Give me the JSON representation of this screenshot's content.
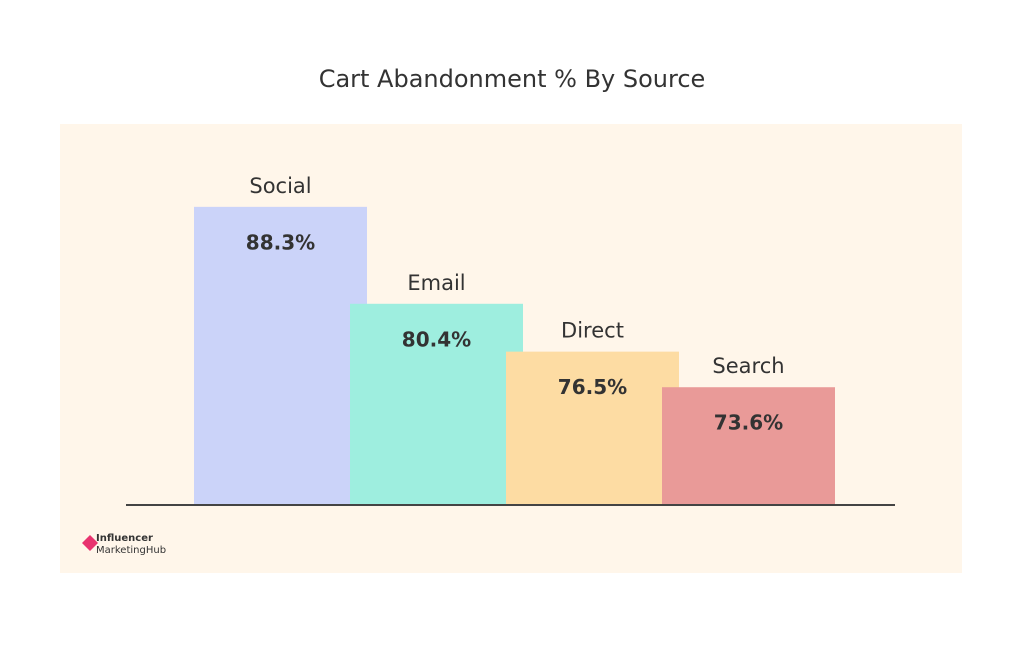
{
  "chart_data": {
    "type": "bar",
    "title": "Cart Abandonment % By Source",
    "categories": [
      "Social",
      "Email",
      "Direct",
      "Search"
    ],
    "values": [
      88.3,
      80.4,
      76.5,
      73.6
    ],
    "value_labels": [
      "88.3%",
      "80.4%",
      "76.5%",
      "73.6%"
    ],
    "colors": [
      "#cbd3f9",
      "#9eeedf",
      "#fddca3",
      "#e99a98"
    ],
    "ylim": [
      64,
      90
    ],
    "brand": [
      "Influencer",
      "MarketingHub"
    ]
  }
}
